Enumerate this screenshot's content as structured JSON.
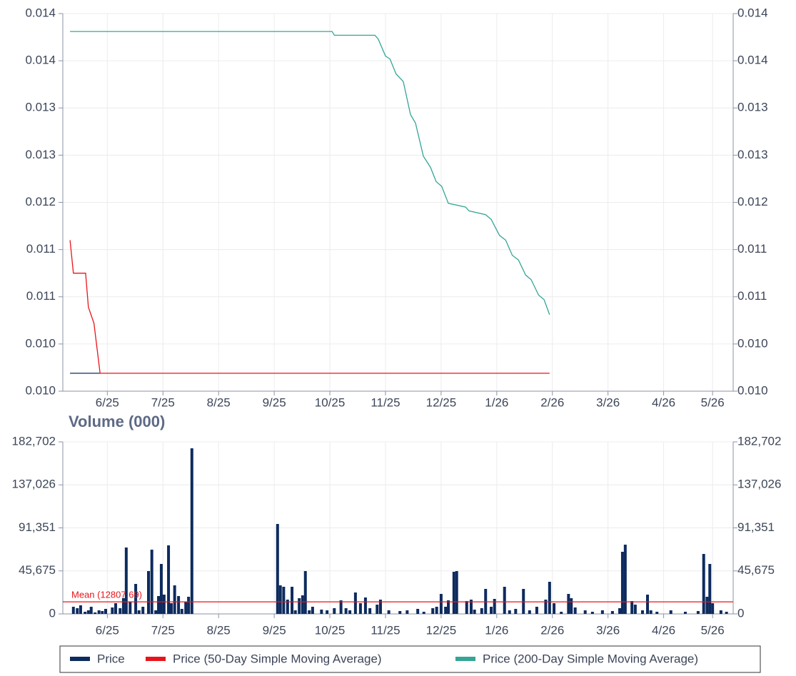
{
  "chart_data": [
    {
      "type": "line",
      "xlim": [
        -0.8,
        11.25
      ],
      "xticks": [
        {
          "value": 0,
          "label": "6/25"
        },
        {
          "value": 1,
          "label": "7/25"
        },
        {
          "value": 2,
          "label": "8/25"
        },
        {
          "value": 3,
          "label": "9/25"
        },
        {
          "value": 4,
          "label": "10/25"
        },
        {
          "value": 5,
          "label": "11/25"
        },
        {
          "value": 6,
          "label": "12/25"
        },
        {
          "value": 7,
          "label": "1/26"
        },
        {
          "value": 8,
          "label": "2/26"
        },
        {
          "value": 9,
          "label": "3/26"
        },
        {
          "value": 10,
          "label": "4/26"
        },
        {
          "value": 10.88,
          "label": "5/26"
        }
      ],
      "ylim": [
        0.01,
        0.014
      ],
      "yticks": [
        {
          "value": 0.01,
          "label": "0.010"
        },
        {
          "value": 0.0105,
          "label": "0.010"
        },
        {
          "value": 0.011,
          "label": "0.011"
        },
        {
          "value": 0.0115,
          "label": "0.011"
        },
        {
          "value": 0.012,
          "label": "0.012"
        },
        {
          "value": 0.0125,
          "label": "0.013"
        },
        {
          "value": 0.013,
          "label": "0.013"
        },
        {
          "value": 0.0135,
          "label": "0.014"
        },
        {
          "value": 0.014,
          "label": "0.014"
        }
      ],
      "grid": true,
      "y_axis_both_sides": true,
      "series": [
        {
          "name": "Price",
          "color": "#0d2b5e",
          "x": [
            -0.67,
            -0.13
          ],
          "values": [
            0.01019,
            0.01019
          ]
        },
        {
          "name": "Price (50-Day Simple Moving Average)",
          "color": "#e8141b",
          "x": [
            -0.67,
            -0.61,
            -0.39,
            -0.34,
            -0.24,
            -0.13,
            7.95
          ],
          "values": [
            0.0116,
            0.01125,
            0.01125,
            0.01089,
            0.01072,
            0.01019,
            0.01019
          ]
        },
        {
          "name": "Price (200-Day Simple Moving Average)",
          "color": "#35a596",
          "x": [
            -0.67,
            4.04,
            4.08,
            4.81,
            4.87,
            5.0,
            5.08,
            5.19,
            5.32,
            5.45,
            5.54,
            5.68,
            5.81,
            5.91,
            6.01,
            6.13,
            6.44,
            6.5,
            6.8,
            6.9,
            7.05,
            7.16,
            7.28,
            7.39,
            7.52,
            7.62,
            7.75,
            7.85,
            7.95
          ],
          "values": [
            0.01381,
            0.01381,
            0.01377,
            0.01377,
            0.01373,
            0.01355,
            0.01352,
            0.01336,
            0.01328,
            0.01293,
            0.01284,
            0.01249,
            0.01237,
            0.01222,
            0.01217,
            0.01199,
            0.01195,
            0.01191,
            0.01187,
            0.01182,
            0.01165,
            0.0116,
            0.01144,
            0.01139,
            0.01123,
            0.01118,
            0.01102,
            0.01097,
            0.01081
          ]
        }
      ]
    },
    {
      "type": "bar",
      "title": "Volume (000)",
      "xlim": [
        -0.8,
        11.25
      ],
      "xticks": [
        {
          "value": 0,
          "label": "6/25"
        },
        {
          "value": 1,
          "label": "7/25"
        },
        {
          "value": 2,
          "label": "8/25"
        },
        {
          "value": 3,
          "label": "9/25"
        },
        {
          "value": 4,
          "label": "10/25"
        },
        {
          "value": 5,
          "label": "11/25"
        },
        {
          "value": 6,
          "label": "12/25"
        },
        {
          "value": 7,
          "label": "1/26"
        },
        {
          "value": 8,
          "label": "2/26"
        },
        {
          "value": 9,
          "label": "3/26"
        },
        {
          "value": 10,
          "label": "4/26"
        },
        {
          "value": 10.88,
          "label": "5/26"
        }
      ],
      "ylim": [
        0,
        182702
      ],
      "yticks": [
        0,
        {
          "value": 45675,
          "label": "45,675"
        },
        {
          "value": 91351,
          "label": "91,351"
        },
        {
          "value": 137026,
          "label": "137,026"
        },
        {
          "value": 182702,
          "label": "182,702"
        }
      ],
      "grid": true,
      "y_axis_both_sides": true,
      "mean": {
        "value": 12807.69,
        "label": "Mean (12807.69)",
        "color": "#e8141b"
      },
      "color": "#0d2b5e",
      "x": [
        -0.61,
        -0.54,
        -0.48,
        -0.4,
        -0.34,
        -0.29,
        -0.22,
        -0.15,
        -0.09,
        -0.03,
        0.09,
        0.15,
        0.23,
        0.29,
        0.34,
        0.41,
        0.51,
        0.57,
        0.64,
        0.74,
        0.8,
        0.87,
        0.92,
        0.97,
        1.02,
        1.1,
        1.15,
        1.21,
        1.28,
        1.34,
        1.41,
        1.46,
        1.52,
        3.06,
        3.11,
        3.17,
        3.24,
        3.32,
        3.38,
        3.45,
        3.51,
        3.56,
        3.63,
        3.69,
        3.85,
        3.95,
        4.08,
        4.2,
        4.29,
        4.36,
        4.46,
        4.55,
        4.64,
        4.72,
        4.85,
        4.91,
        5.06,
        5.26,
        5.39,
        5.58,
        5.69,
        5.85,
        5.92,
        6.0,
        6.08,
        6.13,
        6.23,
        6.28,
        6.46,
        6.54,
        6.6,
        6.73,
        6.8,
        6.9,
        6.96,
        7.14,
        7.23,
        7.34,
        7.48,
        7.59,
        7.72,
        7.88,
        7.95,
        8.03,
        8.16,
        8.29,
        8.34,
        8.41,
        8.59,
        8.72,
        8.9,
        9.08,
        9.21,
        9.26,
        9.31,
        9.43,
        9.49,
        9.62,
        9.71,
        9.77,
        9.88,
        10.13,
        10.39,
        10.62,
        10.72,
        10.78,
        10.83,
        10.88,
        11.03,
        11.13
      ],
      "values": [
        7580,
        6060,
        9100,
        2270,
        3790,
        7580,
        1520,
        3790,
        3030,
        5310,
        6820,
        11370,
        6060,
        16680,
        70500,
        12890,
        31840,
        3790,
        7580,
        45480,
        68220,
        3790,
        18950,
        53060,
        20470,
        72770,
        11370,
        30320,
        18950,
        5310,
        12890,
        18190,
        175860,
        95510,
        30320,
        28800,
        15160,
        28800,
        3790,
        16680,
        19710,
        45480,
        3790,
        7580,
        4550,
        3790,
        6060,
        14400,
        6060,
        3790,
        22740,
        11370,
        17430,
        6060,
        9850,
        15160,
        3790,
        3030,
        3790,
        5310,
        2270,
        6060,
        7580,
        21220,
        7580,
        14400,
        44720,
        45480,
        13640,
        15160,
        4550,
        6060,
        26530,
        7580,
        15920,
        28800,
        3790,
        5310,
        26530,
        3790,
        7580,
        15160,
        34110,
        11370,
        2270,
        21220,
        16680,
        6820,
        3790,
        2270,
        3790,
        3030,
        6060,
        65950,
        73530,
        13640,
        9850,
        3790,
        20470,
        3790,
        2270,
        3790,
        2270,
        3030,
        63670,
        18190,
        53060,
        11370,
        3790,
        2270
      ]
    }
  ]
}
